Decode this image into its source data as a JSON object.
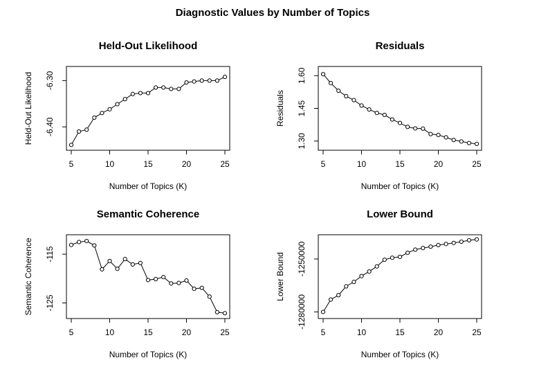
{
  "title": "Diagnostic Values by Number of Topics",
  "chart_data": [
    {
      "type": "line",
      "title": "Held-Out Likelihood",
      "xlabel": "Number of Topics (K)",
      "ylabel": "Held-Out Likelihood",
      "xlim": [
        5,
        25
      ],
      "ylim": [
        -6.44,
        -6.28
      ],
      "x_ticks": [
        5,
        10,
        15,
        20,
        25
      ],
      "y_ticks": [
        -6.4,
        -6.3
      ],
      "y_tick_labels": [
        "-6.40",
        "-6.30"
      ],
      "x": [
        5,
        6,
        7,
        8,
        9,
        10,
        11,
        12,
        13,
        14,
        15,
        16,
        17,
        18,
        19,
        20,
        21,
        22,
        23,
        24,
        25
      ],
      "values": [
        -6.439,
        -6.41,
        -6.406,
        -6.38,
        -6.37,
        -6.362,
        -6.351,
        -6.34,
        -6.329,
        -6.327,
        -6.327,
        -6.315,
        -6.315,
        -6.318,
        -6.318,
        -6.304,
        -6.302,
        -6.3,
        -6.3,
        -6.3,
        -6.292
      ]
    },
    {
      "type": "line",
      "title": "Residuals",
      "xlabel": "Number of Topics (K)",
      "ylabel": "Residuals",
      "xlim": [
        5,
        25
      ],
      "ylim": [
        1.28,
        1.62
      ],
      "x_ticks": [
        5,
        10,
        15,
        20,
        25
      ],
      "y_ticks": [
        1.3,
        1.45,
        1.6
      ],
      "y_tick_labels": [
        "1.30",
        "1.45",
        "1.60"
      ],
      "x": [
        5,
        6,
        7,
        8,
        9,
        10,
        11,
        12,
        13,
        14,
        15,
        16,
        17,
        18,
        19,
        20,
        21,
        22,
        23,
        24,
        25
      ],
      "values": [
        1.607,
        1.566,
        1.531,
        1.506,
        1.488,
        1.463,
        1.445,
        1.429,
        1.42,
        1.399,
        1.383,
        1.365,
        1.358,
        1.357,
        1.332,
        1.328,
        1.317,
        1.305,
        1.298,
        1.291,
        1.287
      ]
    },
    {
      "type": "line",
      "title": "Semantic Coherence",
      "xlabel": "Number of Topics (K)",
      "ylabel": "Semantic Coherence",
      "xlim": [
        5,
        25
      ],
      "ylim": [
        -127.2,
        -112.0
      ],
      "x_ticks": [
        5,
        10,
        15,
        20,
        25
      ],
      "y_ticks": [
        -125,
        -115
      ],
      "y_tick_labels": [
        "-125",
        "-115"
      ],
      "x": [
        5,
        6,
        7,
        8,
        9,
        10,
        11,
        12,
        13,
        14,
        15,
        16,
        17,
        18,
        19,
        20,
        21,
        22,
        23,
        24,
        25
      ],
      "values": [
        -113.1,
        -112.5,
        -112.3,
        -113.2,
        -118.1,
        -116.4,
        -118.0,
        -116.0,
        -117.1,
        -116.8,
        -120.3,
        -120.1,
        -119.7,
        -121.0,
        -120.9,
        -120.4,
        -122.1,
        -121.9,
        -123.7,
        -126.9,
        -127.1
      ]
    },
    {
      "type": "line",
      "title": "Lower Bound",
      "xlabel": "Number of Topics (K)",
      "ylabel": "Lower Bound",
      "xlim": [
        5,
        25
      ],
      "ylim": [
        -1281000,
        -1239000
      ],
      "x_ticks": [
        5,
        10,
        15,
        20,
        25
      ],
      "y_ticks": [
        -1280000,
        -1250000
      ],
      "y_tick_labels": [
        "-1280000",
        "-1250000"
      ],
      "x": [
        5,
        6,
        7,
        8,
        9,
        10,
        11,
        12,
        13,
        14,
        15,
        16,
        17,
        18,
        19,
        20,
        21,
        22,
        23,
        24,
        25
      ],
      "values": [
        -1280000,
        -1273000,
        -1270500,
        -1265500,
        -1263000,
        -1259700,
        -1257100,
        -1254200,
        -1250400,
        -1249300,
        -1248800,
        -1246500,
        -1244700,
        -1243800,
        -1243000,
        -1242100,
        -1241500,
        -1240900,
        -1240200,
        -1239400,
        -1238900
      ]
    }
  ]
}
